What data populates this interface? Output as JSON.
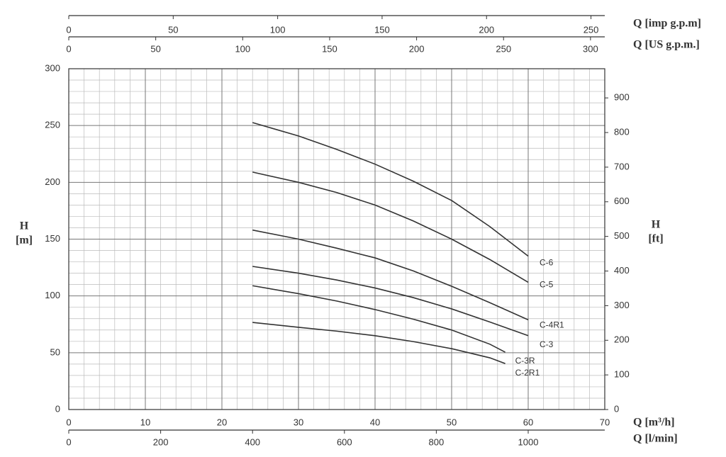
{
  "chart_data": {
    "type": "line",
    "xlim": [
      0,
      70
    ],
    "xticks": [
      0,
      10,
      20,
      30,
      40,
      50,
      60,
      70
    ],
    "xlabel": "Q [m³/h]",
    "ylim": [
      0,
      300
    ],
    "yticks": [
      0,
      50,
      100,
      150,
      200,
      250,
      300
    ],
    "ylabel": [
      "H",
      "[m]"
    ],
    "y2lim": [
      0,
      984.25
    ],
    "y2ticks": [
      0,
      100,
      200,
      300,
      400,
      500,
      600,
      700,
      800,
      900
    ],
    "y2label": [
      "H",
      "[ft]"
    ],
    "secondary_x_axes": [
      {
        "label": "Q [l/min]",
        "lim": [
          0,
          1166.67
        ],
        "ticks": [
          0,
          200,
          400,
          600,
          800,
          1000
        ]
      },
      {
        "label": "Q [US g.p.m.]",
        "lim": [
          0,
          308.2
        ],
        "ticks": [
          0,
          50,
          100,
          150,
          200,
          250,
          300
        ]
      },
      {
        "label": "Q [imp g.p.m]",
        "lim": [
          0,
          256.6
        ],
        "ticks": [
          0,
          50,
          100,
          150,
          200,
          250
        ]
      }
    ],
    "grid": true,
    "series": [
      {
        "name": "C-6",
        "color": "#333333",
        "x": [
          24,
          30,
          35,
          40,
          45,
          50,
          55,
          60
        ],
        "values": [
          252.6,
          240.8,
          229,
          216,
          201,
          184,
          161,
          135
        ]
      },
      {
        "name": "C-5",
        "color": "#333333",
        "x": [
          24,
          30,
          35,
          40,
          45,
          50,
          55,
          60
        ],
        "values": [
          209,
          200,
          191,
          180,
          166,
          150,
          132,
          112
        ]
      },
      {
        "name": "C-4R1",
        "color": "#333333",
        "x": [
          24,
          30,
          35,
          40,
          45,
          50,
          55,
          60
        ],
        "values": [
          158,
          150,
          142,
          133.5,
          122,
          108.5,
          94,
          79
        ]
      },
      {
        "name": "C-3",
        "color": "#333333",
        "x": [
          24,
          30,
          35,
          40,
          45,
          50,
          55,
          60
        ],
        "values": [
          126,
          120,
          114,
          107,
          98.5,
          88.6,
          77,
          65
        ]
      },
      {
        "name": "C-3R",
        "color": "#333333",
        "x": [
          24,
          30,
          35,
          40,
          45,
          50,
          55,
          57
        ],
        "values": [
          109,
          102,
          95.5,
          88,
          79.5,
          70,
          57.5,
          50.5
        ]
      },
      {
        "name": "C-2R1",
        "color": "#333333",
        "x": [
          24,
          30,
          35,
          40,
          45,
          50,
          55,
          57
        ],
        "values": [
          76.7,
          72.4,
          69,
          65,
          59.8,
          53.6,
          45.5,
          40.5
        ]
      }
    ]
  }
}
